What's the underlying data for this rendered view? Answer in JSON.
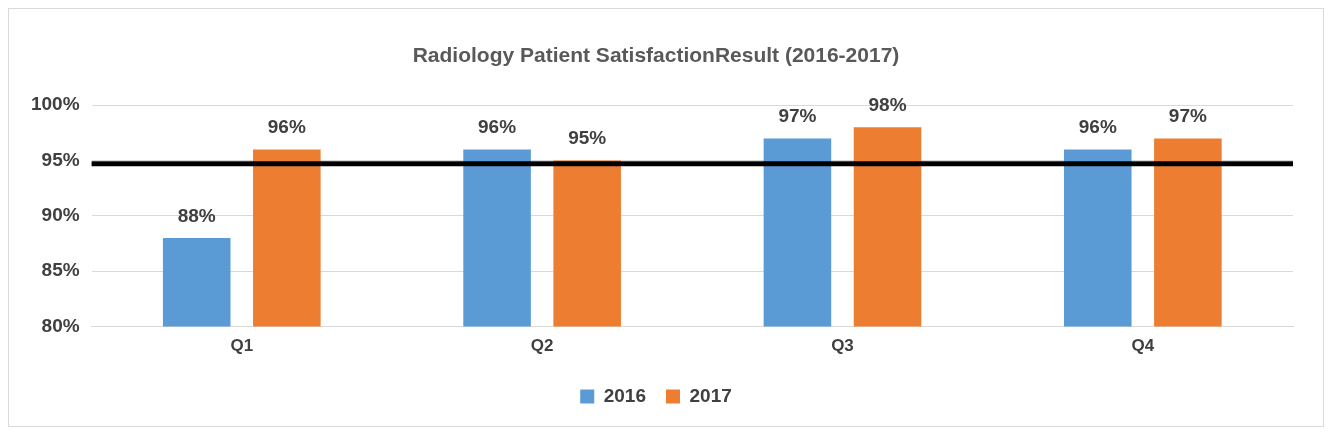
{
  "chart_data": {
    "type": "bar",
    "title": "Radiology Patient SatisfactionResult (2016-2017)",
    "categories": [
      "Q1",
      "Q2",
      "Q3",
      "Q4"
    ],
    "series": [
      {
        "name": "2016",
        "color": "#5b9bd5",
        "values": [
          88,
          96,
          97,
          96
        ],
        "value_labels": [
          "88%",
          "96%",
          "97%",
          "96%"
        ]
      },
      {
        "name": "2017",
        "color": "#ed7d31",
        "values": [
          96,
          95,
          98,
          97
        ],
        "value_labels": [
          "96%",
          "95%",
          "98%",
          "97%"
        ]
      }
    ],
    "ylim": [
      80,
      100
    ],
    "yticks": [
      {
        "value": 80,
        "label": "80%"
      },
      {
        "value": 85,
        "label": "85%"
      },
      {
        "value": 90,
        "label": "90%"
      },
      {
        "value": 95,
        "label": "95%"
      },
      {
        "value": 100,
        "label": "100%"
      }
    ],
    "grid": "y",
    "legend": "bottom",
    "ref_lines": [
      {
        "axis": "y",
        "value": 94.7,
        "color": "#000000"
      }
    ]
  }
}
